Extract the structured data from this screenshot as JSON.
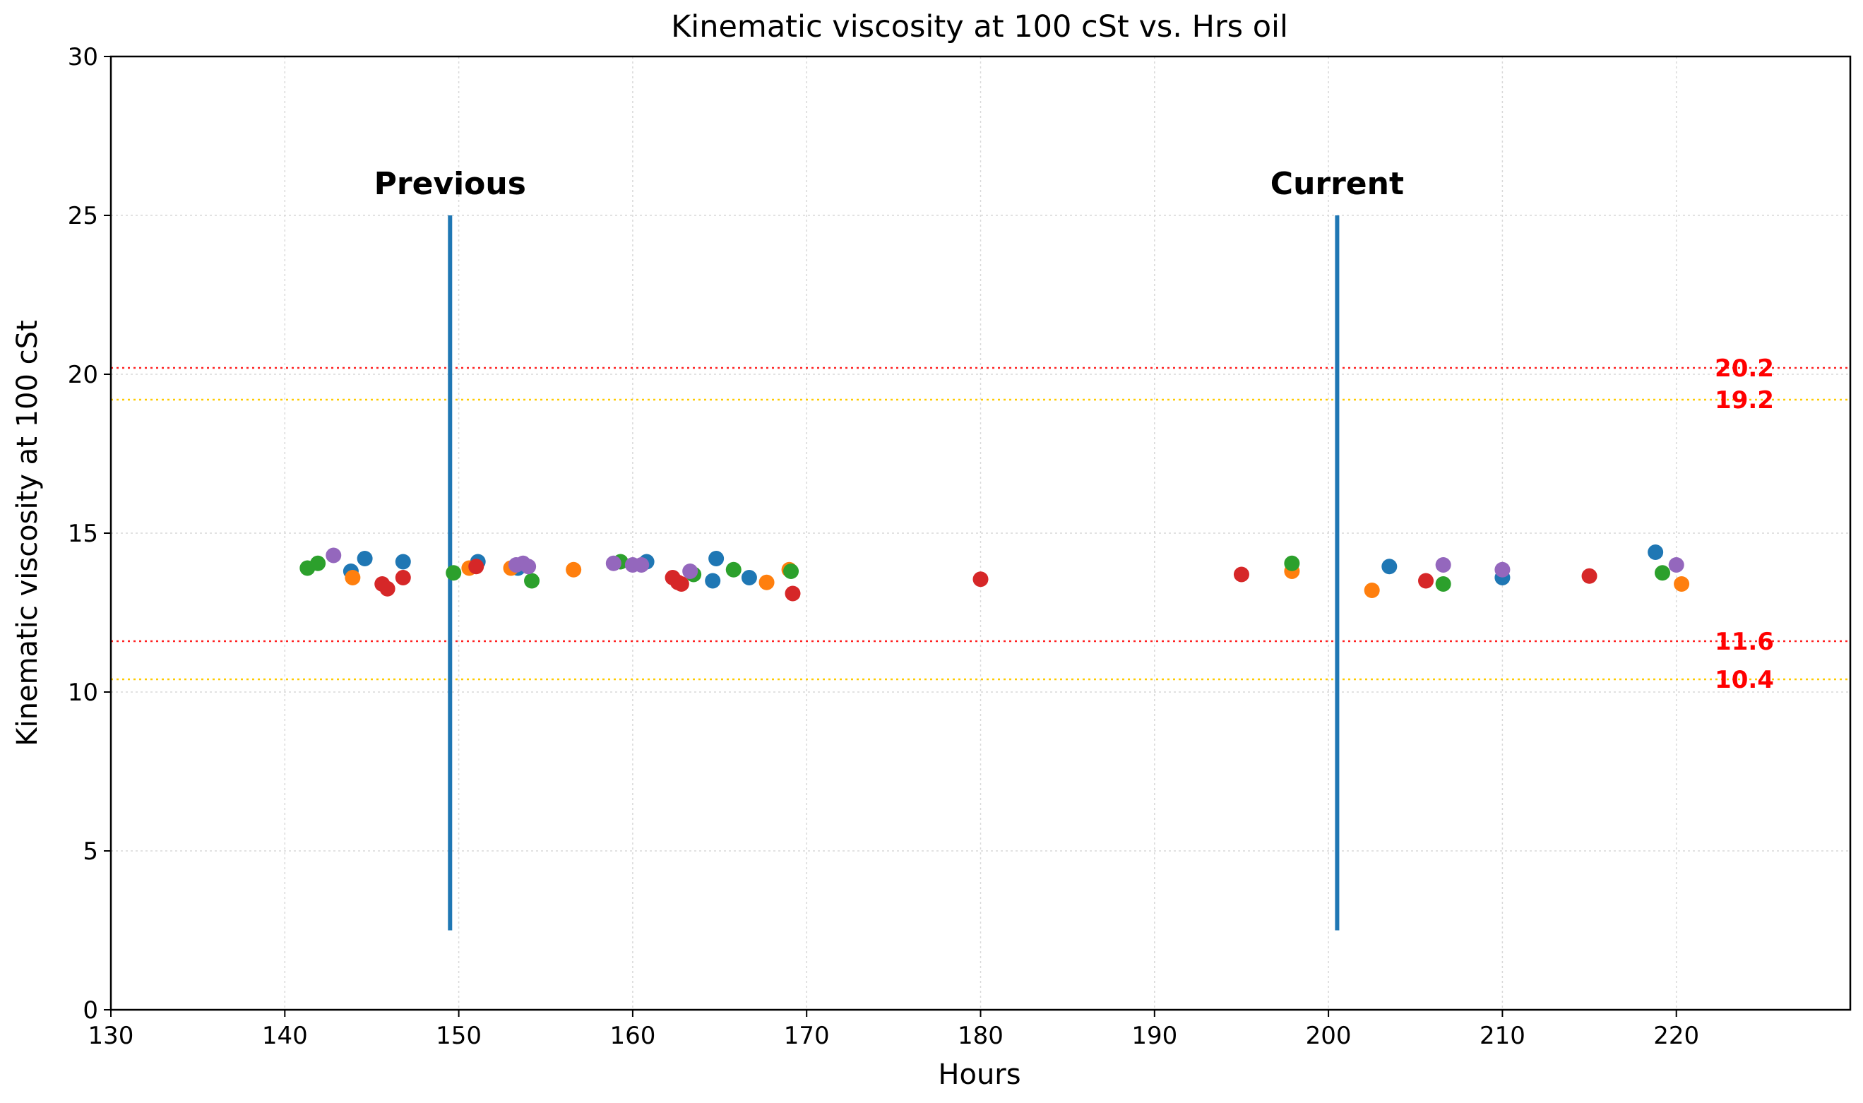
{
  "chart_data": {
    "type": "scatter",
    "title": "Kinematic viscosity at 100 cSt vs. Hrs oil",
    "xlabel": "Hours",
    "ylabel": "Kinematic viscosity at 100 cSt",
    "xlim": [
      130,
      230
    ],
    "ylim": [
      0,
      30
    ],
    "x_ticks": [
      130,
      140,
      150,
      160,
      170,
      180,
      190,
      200,
      210,
      220
    ],
    "y_ticks": [
      0,
      5,
      10,
      15,
      20,
      25,
      30
    ],
    "grid": true,
    "markers": [
      {
        "label": "Previous",
        "x": 149.5,
        "y_range": [
          2.5,
          25
        ],
        "color": "#1f77b4"
      },
      {
        "label": "Current",
        "x": 200.5,
        "y_range": [
          2.5,
          25
        ],
        "color": "#1f77b4"
      }
    ],
    "thresholds": [
      {
        "value": 20.2,
        "label": "20.2",
        "color": "#ff2222"
      },
      {
        "value": 19.2,
        "label": "19.2",
        "color": "#ffcc00"
      },
      {
        "value": 11.6,
        "label": "11.6",
        "color": "#ff2222"
      },
      {
        "value": 10.4,
        "label": "10.4",
        "color": "#ffcc00"
      }
    ],
    "threshold_label_color": "#ff0000",
    "series": [
      {
        "name": "blue",
        "color": "#1f77b4",
        "points": [
          [
            143.8,
            13.8
          ],
          [
            144.6,
            14.2
          ],
          [
            146.8,
            14.1
          ],
          [
            151.1,
            14.1
          ],
          [
            153.4,
            13.9
          ],
          [
            160.8,
            14.1
          ],
          [
            164.6,
            13.5
          ],
          [
            164.8,
            14.2
          ],
          [
            166.7,
            13.6
          ],
          [
            203.5,
            13.95
          ],
          [
            210.0,
            13.6
          ],
          [
            218.8,
            14.4
          ]
        ]
      },
      {
        "name": "orange",
        "color": "#ff7f0e",
        "points": [
          [
            143.9,
            13.6
          ],
          [
            150.6,
            13.9
          ],
          [
            153.0,
            13.9
          ],
          [
            156.6,
            13.85
          ],
          [
            167.7,
            13.45
          ],
          [
            169.0,
            13.85
          ],
          [
            197.9,
            13.8
          ],
          [
            202.5,
            13.2
          ],
          [
            220.3,
            13.4
          ]
        ]
      },
      {
        "name": "green",
        "color": "#2ca02c",
        "points": [
          [
            141.3,
            13.9
          ],
          [
            141.9,
            14.05
          ],
          [
            149.7,
            13.75
          ],
          [
            154.2,
            13.5
          ],
          [
            159.3,
            14.1
          ],
          [
            163.5,
            13.7
          ],
          [
            165.8,
            13.85
          ],
          [
            169.1,
            13.8
          ],
          [
            197.9,
            14.05
          ],
          [
            206.6,
            13.4
          ],
          [
            219.2,
            13.75
          ]
        ]
      },
      {
        "name": "red",
        "color": "#d62728",
        "points": [
          [
            145.6,
            13.4
          ],
          [
            145.9,
            13.25
          ],
          [
            146.8,
            13.6
          ],
          [
            151.0,
            13.95
          ],
          [
            162.3,
            13.6
          ],
          [
            162.6,
            13.45
          ],
          [
            162.8,
            13.4
          ],
          [
            169.2,
            13.1
          ],
          [
            180.0,
            13.55
          ],
          [
            195.0,
            13.7
          ],
          [
            205.6,
            13.5
          ],
          [
            215.0,
            13.65
          ]
        ]
      },
      {
        "name": "purple",
        "color": "#9467bd",
        "points": [
          [
            142.8,
            14.3
          ],
          [
            153.3,
            14.0
          ],
          [
            153.7,
            14.05
          ],
          [
            154.0,
            13.95
          ],
          [
            158.9,
            14.05
          ],
          [
            160.0,
            14.0
          ],
          [
            160.5,
            14.0
          ],
          [
            163.3,
            13.8
          ],
          [
            206.6,
            14.0
          ],
          [
            210.0,
            13.85
          ],
          [
            220.0,
            14.0
          ]
        ]
      }
    ]
  }
}
